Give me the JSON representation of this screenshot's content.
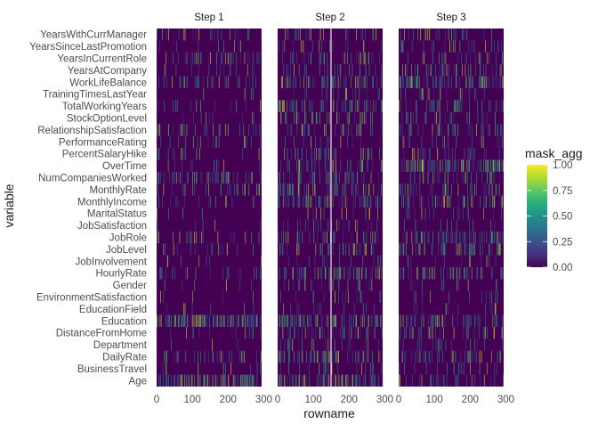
{
  "chart_data": {
    "type": "heatmap",
    "xlabel": "rowname",
    "ylabel": "variable",
    "xlim": [
      0,
      294
    ],
    "x_ticks": [
      "0",
      "100",
      "200",
      "300"
    ],
    "facets": [
      "Step 1",
      "Step 2",
      "Step 3"
    ],
    "variables": [
      "Age",
      "BusinessTravel",
      "DailyRate",
      "Department",
      "DistanceFromHome",
      "Education",
      "EducationField",
      "EnvironmentSatisfaction",
      "Gender",
      "HourlyRate",
      "JobInvolvement",
      "JobLevel",
      "JobRole",
      "JobSatisfaction",
      "MaritalStatus",
      "MonthlyIncome",
      "MonthlyRate",
      "NumCompaniesWorked",
      "OverTime",
      "PercentSalaryHike",
      "PerformanceRating",
      "RelationshipSatisfaction",
      "StockOptionLevel",
      "TotalWorkingYears",
      "TrainingTimesLastYear",
      "WorkLifeBalance",
      "YearsAtCompany",
      "YearsInCurrentRole",
      "YearsSinceLastPromotion",
      "YearsWithCurrManager"
    ],
    "n_rows": 294,
    "fill_scale": {
      "name": "mask_agg",
      "palette": "viridis",
      "limits": [
        0,
        1
      ],
      "ticks": [
        "0.00",
        "0.25",
        "0.50",
        "0.75",
        "1.00"
      ]
    },
    "row_density": {
      "Step 1": [
        0.28,
        0.02,
        0.12,
        0.02,
        0.04,
        0.3,
        0.02,
        0.02,
        0.02,
        0.05,
        0.02,
        0.05,
        0.08,
        0.02,
        0.03,
        0.06,
        0.1,
        0.18,
        0.03,
        0.05,
        0.07,
        0.1,
        0.05,
        0.06,
        0.03,
        0.08,
        0.04,
        0.1,
        0.05,
        0.08
      ],
      "Step 2": [
        0.2,
        0.1,
        0.18,
        0.08,
        0.12,
        0.22,
        0.06,
        0.05,
        0.05,
        0.15,
        0.04,
        0.12,
        0.14,
        0.06,
        0.06,
        0.16,
        0.14,
        0.14,
        0.12,
        0.12,
        0.08,
        0.1,
        0.1,
        0.14,
        0.06,
        0.16,
        0.12,
        0.1,
        0.06,
        0.08
      ],
      "Step 3": [
        0.12,
        0.08,
        0.16,
        0.06,
        0.12,
        0.14,
        0.05,
        0.04,
        0.04,
        0.14,
        0.05,
        0.14,
        0.16,
        0.05,
        0.05,
        0.16,
        0.12,
        0.12,
        0.3,
        0.1,
        0.06,
        0.1,
        0.1,
        0.14,
        0.06,
        0.24,
        0.1,
        0.1,
        0.06,
        0.08
      ]
    }
  }
}
